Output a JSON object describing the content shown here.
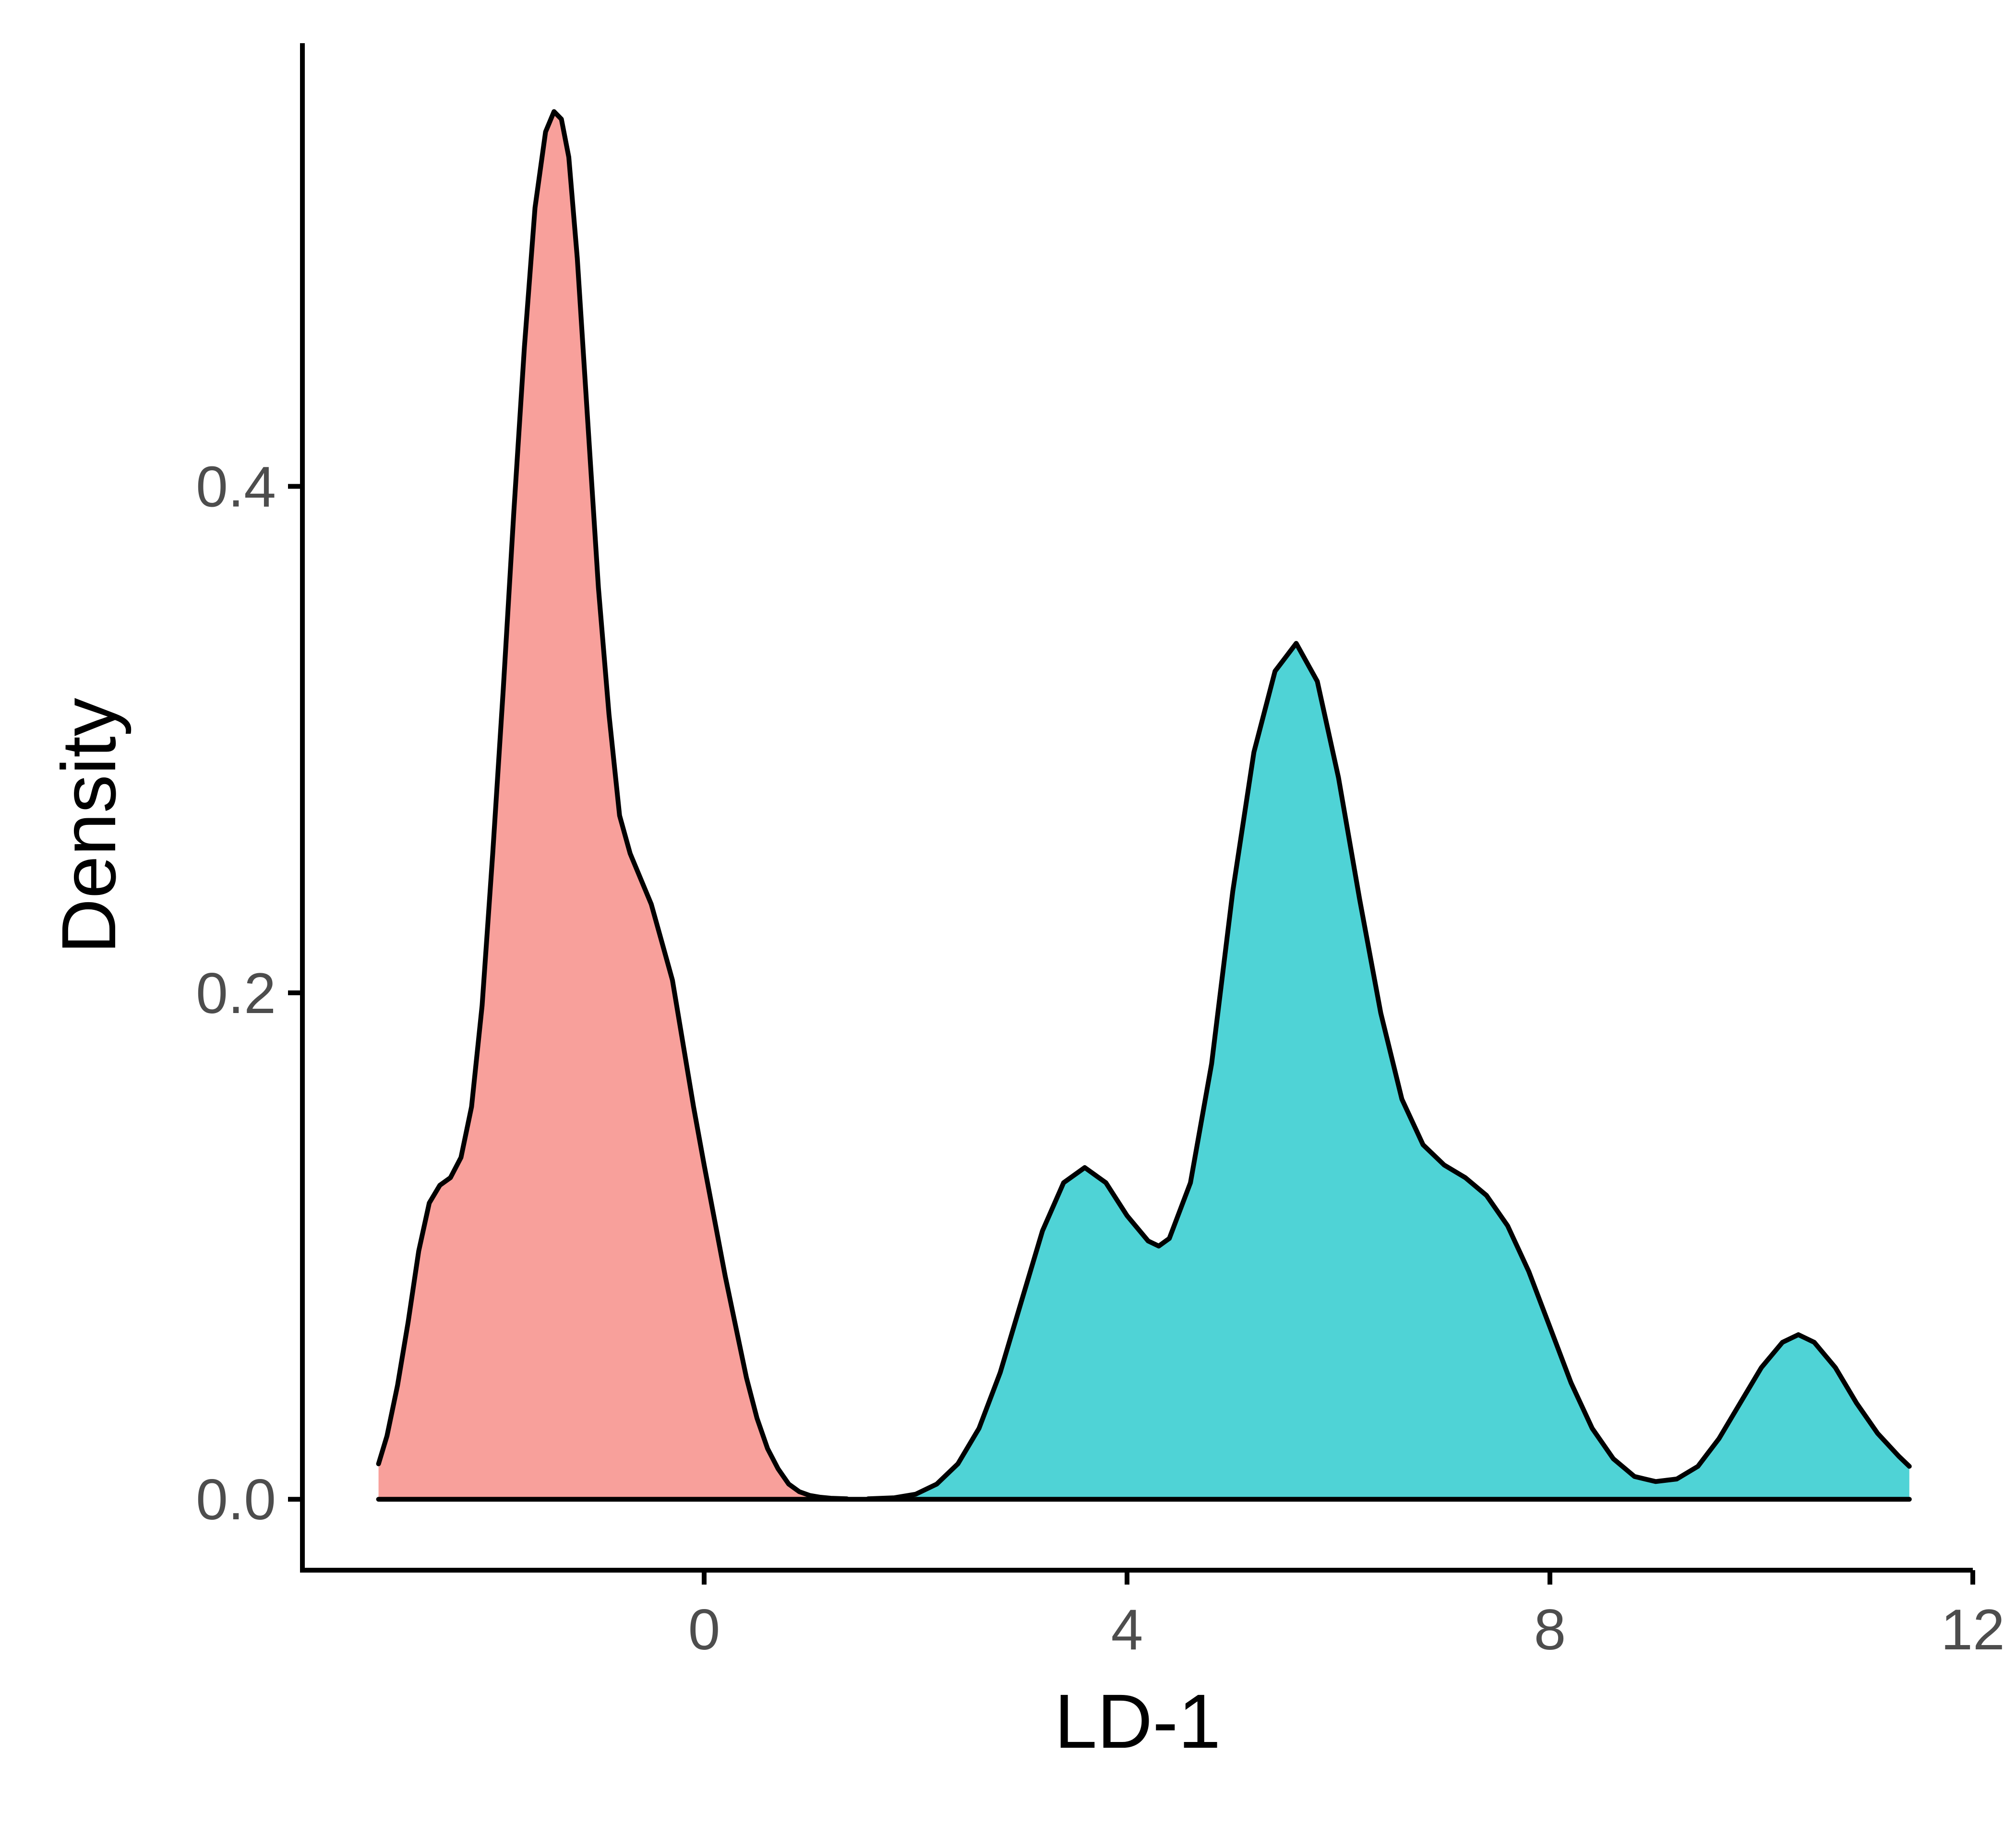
{
  "chart_data": {
    "type": "area",
    "title": "",
    "xlabel": "LD-1",
    "ylabel": "Density",
    "xlim": [
      -3.8,
      12.0
    ],
    "ylim": [
      -0.028,
      0.575
    ],
    "xticks": [
      0,
      4,
      8,
      12
    ],
    "xtick_labels": [
      "0",
      "4",
      "8",
      "12"
    ],
    "yticks": [
      0.0,
      0.2,
      0.4
    ],
    "ytick_labels": [
      "0.0",
      "0.2",
      "0.4"
    ],
    "grid": false,
    "legend": "none",
    "colors": {
      "group_1": "#F8A09B",
      "group_2": "#4FD3D6",
      "line": "#000000"
    },
    "series": [
      {
        "points": [
          [
            -3.08,
            0.014
          ],
          [
            -3.0,
            0.025
          ],
          [
            -2.9,
            0.045
          ],
          [
            -2.8,
            0.07
          ],
          [
            -2.7,
            0.098
          ],
          [
            -2.6,
            0.117
          ],
          [
            -2.5,
            0.124
          ],
          [
            -2.4,
            0.127
          ],
          [
            -2.3,
            0.135
          ],
          [
            -2.2,
            0.155
          ],
          [
            -2.1,
            0.195
          ],
          [
            -2.0,
            0.255
          ],
          [
            -1.9,
            0.32
          ],
          [
            -1.8,
            0.39
          ],
          [
            -1.7,
            0.455
          ],
          [
            -1.6,
            0.51
          ],
          [
            -1.5,
            0.54
          ],
          [
            -1.42,
            0.548
          ],
          [
            -1.35,
            0.545
          ],
          [
            -1.28,
            0.53
          ],
          [
            -1.2,
            0.49
          ],
          [
            -1.1,
            0.425
          ],
          [
            -1.0,
            0.36
          ],
          [
            -0.9,
            0.31
          ],
          [
            -0.8,
            0.27
          ],
          [
            -0.7,
            0.255
          ],
          [
            -0.6,
            0.245
          ],
          [
            -0.5,
            0.235
          ],
          [
            -0.4,
            0.22
          ],
          [
            -0.3,
            0.205
          ],
          [
            -0.2,
            0.18
          ],
          [
            -0.1,
            0.155
          ],
          [
            0.0,
            0.132
          ],
          [
            0.1,
            0.11
          ],
          [
            0.2,
            0.088
          ],
          [
            0.3,
            0.068
          ],
          [
            0.4,
            0.048
          ],
          [
            0.5,
            0.032
          ],
          [
            0.6,
            0.02
          ],
          [
            0.7,
            0.012
          ],
          [
            0.8,
            0.006
          ],
          [
            0.9,
            0.003
          ],
          [
            1.0,
            0.0015
          ],
          [
            1.1,
            0.0008
          ],
          [
            1.2,
            0.0004
          ],
          [
            1.35,
            0.0002
          ]
        ]
      },
      {
        "points": [
          [
            1.55,
            0.0002
          ],
          [
            1.8,
            0.0006
          ],
          [
            2.0,
            0.002
          ],
          [
            2.2,
            0.006
          ],
          [
            2.4,
            0.014
          ],
          [
            2.6,
            0.028
          ],
          [
            2.8,
            0.05
          ],
          [
            3.0,
            0.078
          ],
          [
            3.2,
            0.106
          ],
          [
            3.4,
            0.125
          ],
          [
            3.6,
            0.131
          ],
          [
            3.8,
            0.125
          ],
          [
            4.0,
            0.112
          ],
          [
            4.2,
            0.102
          ],
          [
            4.3,
            0.1
          ],
          [
            4.4,
            0.103
          ],
          [
            4.6,
            0.125
          ],
          [
            4.8,
            0.172
          ],
          [
            5.0,
            0.24
          ],
          [
            5.2,
            0.295
          ],
          [
            5.4,
            0.327
          ],
          [
            5.6,
            0.338
          ],
          [
            5.8,
            0.323
          ],
          [
            6.0,
            0.285
          ],
          [
            6.2,
            0.237
          ],
          [
            6.4,
            0.192
          ],
          [
            6.6,
            0.158
          ],
          [
            6.8,
            0.14
          ],
          [
            7.0,
            0.132
          ],
          [
            7.2,
            0.127
          ],
          [
            7.4,
            0.12
          ],
          [
            7.6,
            0.108
          ],
          [
            7.8,
            0.09
          ],
          [
            8.0,
            0.068
          ],
          [
            8.2,
            0.046
          ],
          [
            8.4,
            0.028
          ],
          [
            8.6,
            0.016
          ],
          [
            8.8,
            0.009
          ],
          [
            9.0,
            0.007
          ],
          [
            9.2,
            0.008
          ],
          [
            9.4,
            0.013
          ],
          [
            9.6,
            0.024
          ],
          [
            9.8,
            0.038
          ],
          [
            10.0,
            0.052
          ],
          [
            10.2,
            0.062
          ],
          [
            10.35,
            0.065
          ],
          [
            10.5,
            0.062
          ],
          [
            10.7,
            0.052
          ],
          [
            10.9,
            0.038
          ],
          [
            11.1,
            0.026
          ],
          [
            11.3,
            0.017
          ],
          [
            11.4,
            0.013
          ]
        ]
      }
    ]
  }
}
